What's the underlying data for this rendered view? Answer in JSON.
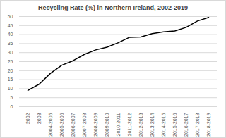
{
  "chart_data": {
    "type": "line",
    "title": "Recycling Rate (%) in Northern Ireland, 2002-2019",
    "categories": [
      "2002",
      "2003",
      "2004-2005",
      "2005-2006",
      "2006-2007",
      "2007-2008",
      "2008-2009",
      "2009-2010",
      "2010-2011",
      "2011-2012",
      "2012-2013",
      "2013-2014",
      "2014-2015",
      "2015-2016",
      "2016-2017",
      "2017-2018",
      "2018-2019"
    ],
    "values": [
      9,
      12.5,
      18.5,
      23,
      25.5,
      29,
      31.5,
      33,
      35.5,
      38.5,
      38.7,
      40.5,
      41.5,
      42,
      44,
      47.5,
      49.5
    ],
    "color": "#000000",
    "ylim": [
      0,
      50
    ],
    "yticks": [
      0,
      5,
      10,
      15,
      20,
      25,
      30,
      35,
      40,
      45,
      50
    ],
    "grid": true
  }
}
